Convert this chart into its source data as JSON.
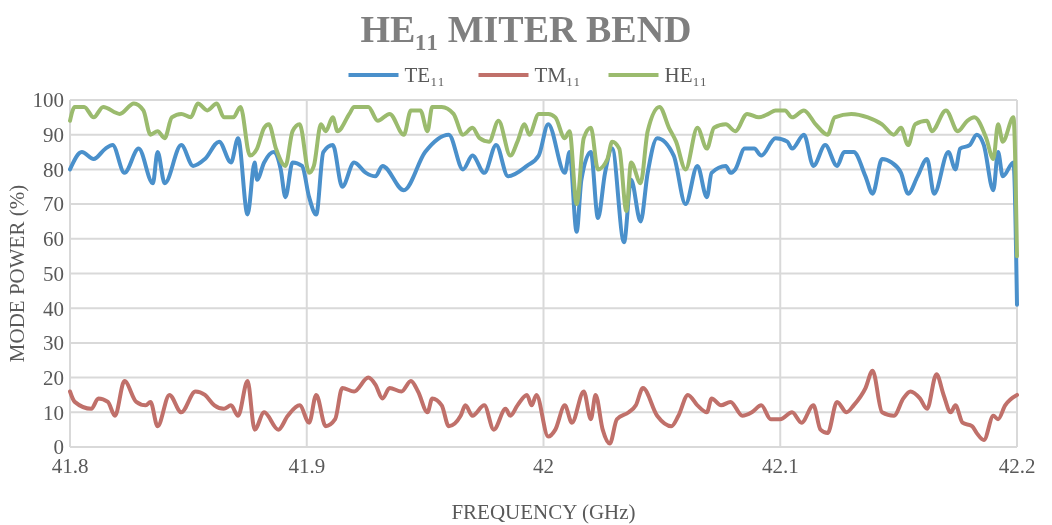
{
  "chart_data": {
    "type": "line",
    "title": "HE₁₁  MITER BEND",
    "xlabel": "FREQUENCY (GHz)",
    "ylabel": "MODE POWER (%)",
    "xlim": [
      41.8,
      42.2
    ],
    "xticks": [
      41.8,
      41.9,
      42,
      42.1,
      42.2
    ],
    "ylim": [
      0,
      100
    ],
    "yticks": [
      0,
      10,
      20,
      30,
      40,
      50,
      60,
      70,
      80,
      90,
      100
    ],
    "grid": true,
    "legend": "top",
    "marker": "none",
    "line_style": "solid",
    "series": [
      {
        "name": "TE₁₁",
        "color": "#4a90cb",
        "x": [
          41.8,
          41.805,
          41.81,
          41.815,
          41.818,
          41.823,
          41.829,
          41.835,
          41.837,
          41.84,
          41.847,
          41.852,
          41.857,
          41.863,
          41.868,
          41.871,
          41.875,
          41.878,
          41.879,
          41.882,
          41.886,
          41.889,
          41.891,
          41.894,
          41.898,
          41.901,
          41.904,
          41.907,
          41.911,
          41.915,
          41.92,
          41.925,
          41.929,
          41.932,
          41.941,
          41.95,
          41.96,
          41.966,
          41.97,
          41.975,
          41.98,
          41.985,
          41.993,
          41.998,
          42.002,
          42.009,
          42.011,
          42.014,
          42.016,
          42.02,
          42.023,
          42.026,
          42.029,
          42.034,
          42.037,
          42.041,
          42.044,
          42.048,
          42.055,
          42.06,
          42.065,
          42.069,
          42.071,
          42.077,
          42.079,
          42.081,
          42.085,
          42.089,
          42.092,
          42.098,
          42.103,
          42.105,
          42.11,
          42.114,
          42.119,
          42.124,
          42.127,
          42.131,
          42.136,
          42.139,
          42.143,
          42.147,
          42.151,
          42.154,
          42.158,
          42.162,
          42.165,
          42.171,
          42.174,
          42.176,
          42.18,
          42.183,
          42.186,
          42.19,
          42.192,
          42.194,
          42.1985,
          42.2
        ],
        "values": [
          80,
          85,
          83,
          86,
          87,
          79,
          86,
          76,
          85,
          76,
          87,
          81,
          83,
          88,
          82,
          89,
          67,
          82,
          77,
          82,
          85,
          80,
          72,
          82,
          81,
          72,
          67,
          85,
          87,
          75,
          82,
          79,
          78,
          81,
          74,
          85,
          90,
          80,
          84,
          79,
          87,
          78,
          81,
          84,
          93,
          79,
          85,
          62,
          77,
          85,
          66,
          79,
          86,
          59,
          77,
          65,
          79,
          89,
          84,
          70,
          81,
          72,
          79,
          81,
          79,
          80,
          86,
          86,
          84,
          89,
          88,
          86,
          90,
          81,
          87,
          81,
          85,
          85,
          78,
          73,
          83,
          82,
          79,
          73,
          78,
          83,
          73,
          85,
          80,
          86,
          87,
          90,
          87,
          74,
          85,
          78,
          82,
          41
        ]
      },
      {
        "name": "TM₁₁",
        "color": "#c0706a",
        "x": [
          41.8,
          41.802,
          41.809,
          41.812,
          41.816,
          41.819,
          41.823,
          41.828,
          41.832,
          41.834,
          41.837,
          41.842,
          41.847,
          41.853,
          41.857,
          41.861,
          41.865,
          41.868,
          41.871,
          41.875,
          41.878,
          41.882,
          41.888,
          41.892,
          41.897,
          41.901,
          41.904,
          41.908,
          41.912,
          41.915,
          41.92,
          41.926,
          41.929,
          41.932,
          41.935,
          41.94,
          41.944,
          41.947,
          41.951,
          41.953,
          41.957,
          41.96,
          41.965,
          41.967,
          41.97,
          41.975,
          41.979,
          41.984,
          41.986,
          41.989,
          41.993,
          41.995,
          41.997,
          42.002,
          42.005,
          42.009,
          42.012,
          42.017,
          42.02,
          42.022,
          42.025,
          42.028,
          42.031,
          42.036,
          42.039,
          42.042,
          42.048,
          42.054,
          42.057,
          42.061,
          42.065,
          42.069,
          42.071,
          42.075,
          42.079,
          42.084,
          42.088,
          42.092,
          42.096,
          42.1,
          42.105,
          42.109,
          42.114,
          42.117,
          42.12,
          42.124,
          42.128,
          42.131,
          42.136,
          42.139,
          42.143,
          42.148,
          42.152,
          42.155,
          42.159,
          42.162,
          42.166,
          42.169,
          42.172,
          42.174,
          42.177,
          42.181,
          42.183,
          42.186,
          42.19,
          42.192,
          42.195,
          42.2
        ],
        "values": [
          16,
          13,
          11,
          14,
          13,
          9,
          19,
          13,
          12,
          13,
          6,
          15,
          10,
          16,
          15,
          12,
          11,
          12,
          9,
          19,
          5,
          10,
          5,
          9,
          12,
          7,
          15,
          6,
          8,
          17,
          16,
          20,
          18,
          14,
          17,
          16,
          19,
          16,
          10,
          14,
          12,
          6,
          9,
          12,
          9,
          12,
          5,
          11,
          9,
          12,
          15,
          12,
          15,
          3,
          5,
          12,
          7,
          16,
          8,
          15,
          5,
          1,
          8,
          10,
          12,
          17,
          9,
          6,
          9,
          15,
          12,
          10,
          14,
          12,
          13,
          9,
          10,
          12,
          8,
          8,
          10,
          7,
          12,
          5,
          4,
          13,
          10,
          12,
          17,
          22,
          10,
          9,
          14,
          16,
          14,
          11,
          21,
          15,
          10,
          12,
          7,
          6,
          4,
          2,
          9,
          8,
          12,
          15
        ]
      },
      {
        "name": "HE₁₁",
        "color": "#9bbb6e",
        "x": [
          41.8,
          41.802,
          41.806,
          41.81,
          41.814,
          41.821,
          41.827,
          41.831,
          41.834,
          41.837,
          41.84,
          41.843,
          41.847,
          41.851,
          41.854,
          41.858,
          41.862,
          41.865,
          41.869,
          41.872,
          41.876,
          41.879,
          41.882,
          41.884,
          41.887,
          41.891,
          41.894,
          41.897,
          41.901,
          41.903,
          41.906,
          41.908,
          41.911,
          41.913,
          41.918,
          41.92,
          41.926,
          41.93,
          41.935,
          41.941,
          41.944,
          41.948,
          41.951,
          41.953,
          41.957,
          41.962,
          41.966,
          41.97,
          41.973,
          41.977,
          41.981,
          41.986,
          41.989,
          41.992,
          41.994,
          41.998,
          42.002,
          42.005,
          42.009,
          42.011,
          42.014,
          42.017,
          42.02,
          42.023,
          42.027,
          42.029,
          42.032,
          42.035,
          42.037,
          42.041,
          42.044,
          42.049,
          42.053,
          42.056,
          42.06,
          42.065,
          42.069,
          42.072,
          42.077,
          42.081,
          42.086,
          42.091,
          42.095,
          42.098,
          42.102,
          42.105,
          42.11,
          42.115,
          42.12,
          42.123,
          42.13,
          42.137,
          42.143,
          42.148,
          42.151,
          42.154,
          42.157,
          42.162,
          42.164,
          42.17,
          42.175,
          42.179,
          42.182,
          42.187,
          42.19,
          42.192,
          42.194,
          42.1985,
          42.2
        ],
        "values": [
          94,
          98,
          98,
          95,
          98,
          96,
          99,
          97,
          90,
          91,
          89,
          95,
          96,
          95,
          99,
          97,
          99,
          95,
          95,
          98,
          84,
          86,
          92,
          93,
          86,
          81,
          91,
          93,
          79,
          81,
          93,
          91,
          95,
          91,
          96,
          98,
          98,
          94,
          96,
          90,
          97,
          97,
          91,
          98,
          98,
          96,
          90,
          92,
          89,
          88,
          94,
          84,
          88,
          93,
          90,
          96,
          96,
          95,
          89,
          91,
          70,
          89,
          92,
          80,
          83,
          88,
          86,
          68,
          82,
          76,
          91,
          98,
          92,
          88,
          80,
          92,
          86,
          92,
          93,
          91,
          96,
          95,
          96,
          97,
          97,
          95,
          97,
          93,
          90,
          95,
          96,
          95,
          93,
          90,
          92,
          87,
          93,
          94,
          91,
          97,
          91,
          94,
          95,
          89,
          83,
          93,
          88,
          95,
          55
        ]
      }
    ]
  }
}
